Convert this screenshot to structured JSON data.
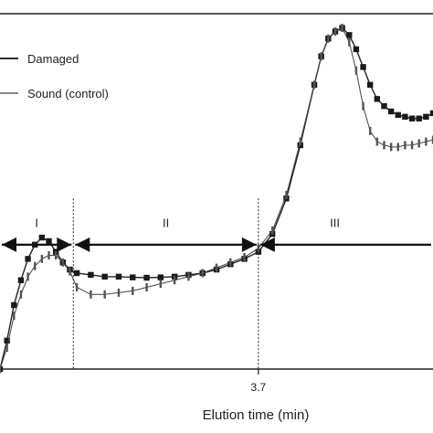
{
  "chart_data": {
    "type": "line",
    "title": "",
    "xlabel": "Elution time (min)",
    "ylabel": "",
    "xlim": [
      0,
      6.2
    ],
    "ylim": [
      0,
      100
    ],
    "grid": false,
    "legend_position": "top-left",
    "x_tick_labels": [
      {
        "x": 3.7,
        "label": "3.7"
      }
    ],
    "x_divisions": [
      1.05,
      3.7
    ],
    "regions": [
      {
        "label": "I",
        "x_start": 0,
        "x_end": 1.05
      },
      {
        "label": "II",
        "x_start": 1.05,
        "x_end": 3.7
      },
      {
        "label": "III",
        "x_start": 3.7,
        "x_end": 6.2
      }
    ],
    "region_arrows": [
      {
        "from": 0,
        "to": 1.05,
        "y": 35
      },
      {
        "from": 1.05,
        "to": 3.7,
        "y": 35
      },
      {
        "from": 3.7,
        "to": 6.2,
        "y": 35
      }
    ],
    "series": [
      {
        "name": "Damaged",
        "marker": "square",
        "color": "#222222",
        "x": [
          0.0,
          0.1,
          0.2,
          0.3,
          0.4,
          0.5,
          0.6,
          0.7,
          0.8,
          0.9,
          1.0,
          1.1,
          1.3,
          1.5,
          1.7,
          1.9,
          2.1,
          2.3,
          2.5,
          2.7,
          2.9,
          3.1,
          3.3,
          3.5,
          3.7,
          3.9,
          4.1,
          4.3,
          4.5,
          4.6,
          4.7,
          4.8,
          4.9,
          5.0,
          5.1,
          5.2,
          5.3,
          5.4,
          5.5,
          5.6,
          5.7,
          5.8,
          5.9,
          6.0,
          6.1,
          6.2
        ],
        "y": [
          0,
          8,
          18,
          25,
          31,
          35,
          37,
          36,
          33,
          30,
          28,
          27,
          26.5,
          26,
          26,
          25.8,
          25.7,
          25.8,
          26,
          26.5,
          27,
          28,
          29.5,
          31,
          33,
          38,
          48,
          63,
          80,
          88,
          93,
          95,
          96,
          94,
          90,
          85,
          80,
          76,
          74,
          72.5,
          71.5,
          71,
          70.5,
          70.5,
          71,
          72
        ]
      },
      {
        "name": "Sound (control)",
        "marker": "bar",
        "color": "#444444",
        "x": [
          0.0,
          0.1,
          0.2,
          0.3,
          0.4,
          0.5,
          0.6,
          0.7,
          0.8,
          0.9,
          1.0,
          1.1,
          1.3,
          1.5,
          1.7,
          1.9,
          2.1,
          2.3,
          2.5,
          2.7,
          2.9,
          3.1,
          3.3,
          3.5,
          3.7,
          3.9,
          4.1,
          4.3,
          4.5,
          4.6,
          4.7,
          4.8,
          4.9,
          5.0,
          5.1,
          5.2,
          5.3,
          5.4,
          5.5,
          5.6,
          5.7,
          5.8,
          5.9,
          6.0,
          6.1,
          6.2
        ],
        "y": [
          0,
          6,
          15,
          21,
          26,
          29,
          31,
          32,
          32,
          30,
          27.5,
          23,
          21,
          21,
          21.5,
          22,
          23,
          24,
          25,
          26,
          27,
          28.5,
          30,
          31.5,
          34,
          39,
          49,
          64,
          80,
          88,
          93,
          95,
          96,
          92,
          84,
          74,
          67,
          64,
          63,
          62.5,
          62.5,
          63,
          63,
          63.5,
          64,
          64.5
        ]
      }
    ]
  }
}
